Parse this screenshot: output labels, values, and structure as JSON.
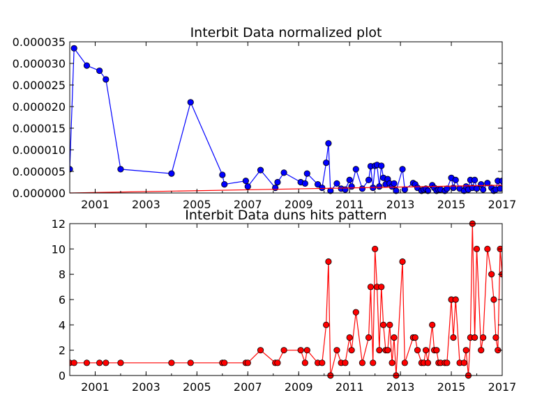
{
  "chart_data": [
    {
      "type": "line",
      "title": "Interbit Data normalized plot",
      "xlabel": "",
      "ylabel": "",
      "xlim": [
        2000,
        2017
      ],
      "ylim": [
        0,
        3.5e-05
      ],
      "x_tick_labels": [
        "2001",
        "2003",
        "2005",
        "2007",
        "2009",
        "2011",
        "2013",
        "2015",
        "2017"
      ],
      "y_tick_labels": [
        "0.000000",
        "0.000005",
        "0.000010",
        "0.000015",
        "0.000020",
        "0.000025",
        "0.000030",
        "0.000035"
      ],
      "series": [
        {
          "color": "#0000ff",
          "marker": "circle",
          "x": [
            2000.0,
            2000.17,
            2000.67,
            2001.17,
            2001.42,
            2002.0,
            2004.0,
            2004.75,
            2006.0,
            2006.08,
            2006.92,
            2007.0,
            2007.5,
            2008.08,
            2008.17,
            2008.42,
            2009.08,
            2009.25,
            2009.33,
            2009.75,
            2009.92,
            2010.08,
            2010.17,
            2010.25,
            2010.5,
            2010.67,
            2010.83,
            2011.0,
            2011.08,
            2011.25,
            2011.5,
            2011.75,
            2011.83,
            2011.92,
            2012.0,
            2012.08,
            2012.17,
            2012.25,
            2012.33,
            2012.42,
            2012.5,
            2012.58,
            2012.67,
            2012.75,
            2012.83,
            2013.08,
            2013.17,
            2013.5,
            2013.58,
            2013.67,
            2013.83,
            2013.92,
            2014.0,
            2014.08,
            2014.25,
            2014.33,
            2014.42,
            2014.5,
            2014.58,
            2014.75,
            2014.83,
            2015.0,
            2015.08,
            2015.17,
            2015.33,
            2015.5,
            2015.58,
            2015.67,
            2015.75,
            2015.83,
            2015.92,
            2016.0,
            2016.17,
            2016.25,
            2016.42,
            2016.58,
            2016.67,
            2016.75,
            2016.83,
            2016.92,
            2017.0
          ],
          "y": [
            5.5e-06,
            3.35e-05,
            2.95e-05,
            2.83e-05,
            2.63e-05,
            5.5e-06,
            4.5e-06,
            2.1e-05,
            4.2e-06,
            2e-06,
            2.8e-06,
            1.5e-06,
            5.3e-06,
            1.2e-06,
            2.5e-06,
            4.7e-06,
            2.5e-06,
            2.2e-06,
            4.5e-06,
            2e-06,
            1.2e-06,
            7e-06,
            1.15e-05,
            5e-07,
            2.2e-06,
            1e-06,
            8e-07,
            3e-06,
            1.5e-06,
            5.5e-06,
            1e-06,
            3e-06,
            6.2e-06,
            1.2e-06,
            6.3e-06,
            6.5e-06,
            1.5e-06,
            6.3e-06,
            3.5e-06,
            2e-06,
            3.2e-06,
            2.2e-06,
            1.5e-06,
            2.2e-06,
            5e-07,
            5.5e-06,
            8e-07,
            2.3e-06,
            2e-06,
            1.2e-06,
            5e-07,
            8e-07,
            1e-06,
            5e-07,
            1.8e-06,
            1.2e-06,
            5e-07,
            8e-07,
            8e-07,
            5e-07,
            1e-06,
            3.5e-06,
            1.2e-06,
            3e-06,
            1e-06,
            5e-07,
            1.5e-06,
            8e-07,
            3e-06,
            1.2e-06,
            3e-06,
            1e-06,
            2e-06,
            8e-07,
            2.3e-06,
            1.2e-06,
            5e-07,
            8e-07,
            2.8e-06,
            1e-06,
            2.8e-06
          ]
        },
        {
          "color": "#ff0000",
          "marker": "none",
          "x": [
            2000.0,
            2017.0
          ],
          "y": [
            0.0,
            1.8e-06
          ]
        }
      ],
      "grid": false,
      "legend": "none"
    },
    {
      "type": "line",
      "title": "Interbit Data duns hits pattern",
      "xlabel": "",
      "ylabel": "",
      "xlim": [
        2000,
        2017
      ],
      "ylim": [
        0,
        12
      ],
      "x_tick_labels": [
        "2001",
        "2003",
        "2005",
        "2007",
        "2009",
        "2011",
        "2013",
        "2015",
        "2017"
      ],
      "y_tick_labels": [
        "0",
        "2",
        "4",
        "6",
        "8",
        "10",
        "12"
      ],
      "series": [
        {
          "color": "#ff0000",
          "marker": "circle",
          "x": [
            2000.0,
            2000.17,
            2000.67,
            2001.17,
            2001.42,
            2002.0,
            2004.0,
            2004.75,
            2006.0,
            2006.08,
            2006.92,
            2007.0,
            2007.5,
            2008.08,
            2008.17,
            2008.42,
            2009.08,
            2009.25,
            2009.33,
            2009.75,
            2009.92,
            2010.08,
            2010.17,
            2010.25,
            2010.5,
            2010.67,
            2010.83,
            2011.0,
            2011.08,
            2011.25,
            2011.5,
            2011.75,
            2011.83,
            2011.92,
            2012.0,
            2012.08,
            2012.17,
            2012.25,
            2012.33,
            2012.42,
            2012.5,
            2012.58,
            2012.67,
            2012.75,
            2012.83,
            2013.08,
            2013.17,
            2013.5,
            2013.58,
            2013.67,
            2013.83,
            2013.92,
            2014.0,
            2014.08,
            2014.25,
            2014.33,
            2014.42,
            2014.5,
            2014.58,
            2014.75,
            2014.83,
            2015.0,
            2015.08,
            2015.17,
            2015.33,
            2015.5,
            2015.58,
            2015.67,
            2015.75,
            2015.83,
            2015.92,
            2016.0,
            2016.17,
            2016.25,
            2016.42,
            2016.58,
            2016.67,
            2016.75,
            2016.83,
            2016.92,
            2017.0
          ],
          "y": [
            1,
            1,
            1,
            1,
            1,
            1,
            1,
            1,
            1,
            1,
            1,
            1,
            2,
            1,
            1,
            2,
            2,
            1,
            2,
            1,
            1,
            4,
            9,
            0,
            2,
            1,
            1,
            3,
            2,
            5,
            1,
            3,
            7,
            1,
            10,
            7,
            2,
            7,
            4,
            2,
            2,
            4,
            1,
            3,
            0,
            9,
            1,
            3,
            3,
            2,
            1,
            1,
            2,
            1,
            4,
            2,
            2,
            1,
            1,
            1,
            1,
            6,
            3,
            6,
            1,
            1,
            2,
            0,
            3,
            12,
            3,
            10,
            2,
            3,
            10,
            8,
            6,
            3,
            2,
            10,
            8
          ]
        }
      ],
      "grid": false,
      "legend": "none"
    }
  ]
}
